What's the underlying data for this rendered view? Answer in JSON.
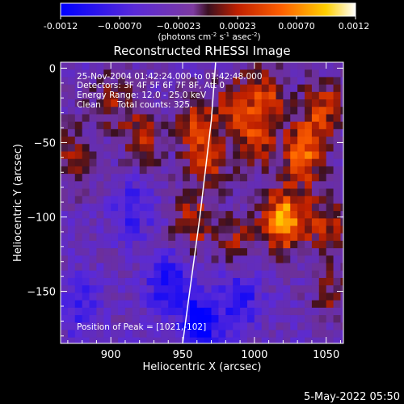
{
  "colorbar": {
    "tick_labels": [
      "-0.0012",
      "−0.00070",
      "−0.00023",
      "0.00023",
      "0.00070",
      "0.0012"
    ],
    "unit_prefix": "(photons cm",
    "unit_sup1": "-2",
    "unit_mid": " s",
    "unit_sup2": "-1",
    "unit_tail": " asec",
    "unit_sup3": "-2",
    "unit_close": ")",
    "range": [
      -0.0012,
      0.0012
    ]
  },
  "overlay": {
    "time_range": "25-Nov-2004 01:42:24.000 to 01:42:48.000",
    "detectors": "Detectors: 3F 4F 5F 6F 7F 8F, Att 0",
    "energy": "Energy Range: 12.0 - 25.0 keV",
    "method": "Clean",
    "counts": "Total counts: 325.",
    "peak": "Position of Peak = [1021,-102]"
  },
  "footer": {
    "timestamp": "5-May-2022 05:50"
  },
  "colors": {
    "background": "#000000",
    "axis": "#ffffff",
    "limb": "#ffffff"
  },
  "chart_data": {
    "type": "heatmap",
    "title": "Reconstructed RHESSI Image",
    "xlabel": "Heliocentric X (arcsec)",
    "ylabel": "Heliocentric Y (arcsec)",
    "xlim": [
      865,
      1062
    ],
    "ylim": [
      -185,
      4
    ],
    "xticks": [
      900,
      950,
      1000,
      1050
    ],
    "yticks": [
      0,
      -50,
      -100,
      -150
    ],
    "xtick_labels": [
      "900",
      "950",
      "1000",
      "1050"
    ],
    "ytick_labels": [
      "0",
      "−50",
      "−100",
      "−150"
    ],
    "peak_position": [
      1021,
      -102
    ],
    "sources": [
      {
        "x": 1021,
        "y": -102,
        "amplitude": 0.0012
      },
      {
        "x": 1033,
        "y": -58,
        "amplitude": 0.0009
      },
      {
        "x": 1047,
        "y": -28,
        "amplitude": 0.0007
      },
      {
        "x": 1000,
        "y": -48,
        "amplitude": 0.0006
      },
      {
        "x": 1008,
        "y": -18,
        "amplitude": 0.00065
      },
      {
        "x": 985,
        "y": -25,
        "amplitude": 0.0005
      },
      {
        "x": 960,
        "y": -40,
        "amplitude": 0.00065
      },
      {
        "x": 958,
        "y": -105,
        "amplitude": 0.0006
      },
      {
        "x": 968,
        "y": -68,
        "amplitude": 0.0005
      },
      {
        "x": 922,
        "y": -45,
        "amplitude": 0.0006
      },
      {
        "x": 900,
        "y": -22,
        "amplitude": 0.00045
      },
      {
        "x": 874,
        "y": -58,
        "amplitude": 0.0005
      },
      {
        "x": 990,
        "y": -115,
        "amplitude": 0.00045
      },
      {
        "x": 1050,
        "y": -105,
        "amplitude": 0.0006
      },
      {
        "x": 1055,
        "y": -150,
        "amplitude": 0.0004
      },
      {
        "x": 940,
        "y": -145,
        "amplitude": -0.0007
      },
      {
        "x": 962,
        "y": -172,
        "amplitude": -0.0009
      },
      {
        "x": 990,
        "y": -155,
        "amplitude": -0.0006
      },
      {
        "x": 880,
        "y": -160,
        "amplitude": -0.0005
      },
      {
        "x": 915,
        "y": -95,
        "amplitude": -0.0005
      }
    ],
    "limb": {
      "points": [
        [
          950,
          -185
        ],
        [
          962,
          -100
        ],
        [
          970,
          -35
        ],
        [
          973,
          4
        ]
      ]
    }
  }
}
